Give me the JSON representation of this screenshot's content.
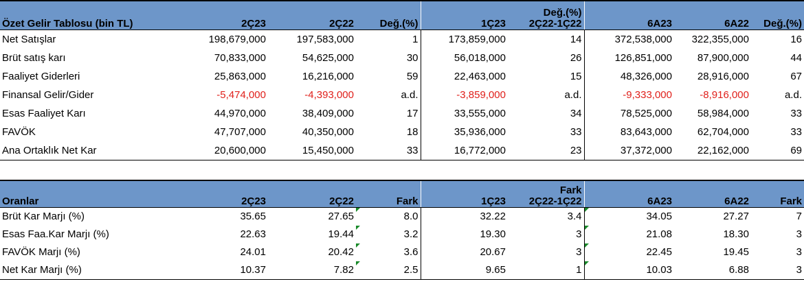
{
  "income": {
    "header": {
      "title": "Özet Gelir Tablosu (bin TL)",
      "c1": "2Ç23",
      "c2": "2Ç22",
      "c3": "Değ.(%)",
      "c4": "1Ç23",
      "c5_top": "Değ.(%)",
      "c5_bottom": "2Ç22-1Ç22",
      "c6": "6A23",
      "c7": "6A22",
      "c8": "Değ.(%)"
    },
    "rows": [
      {
        "label": "Net Satışlar",
        "v": [
          "198,679,000",
          "197,583,000",
          "1",
          "173,859,000",
          "14",
          "372,538,000",
          "322,355,000",
          "16"
        ]
      },
      {
        "label": "Brüt satış karı",
        "v": [
          "70,833,000",
          "54,625,000",
          "30",
          "56,018,000",
          "26",
          "126,851,000",
          "87,900,000",
          "44"
        ]
      },
      {
        "label": "Faaliyet Giderleri",
        "v": [
          "25,863,000",
          "16,216,000",
          "59",
          "22,463,000",
          "15",
          "48,326,000",
          "28,916,000",
          "67"
        ]
      },
      {
        "label": "Finansal Gelir/Gider",
        "v": [
          "-5,474,000",
          "-4,393,000",
          "a.d.",
          "-3,859,000",
          "a.d.",
          "-9,333,000",
          "-8,916,000",
          "a.d."
        ]
      },
      {
        "label": "Esas Faaliyet Karı",
        "v": [
          "44,970,000",
          "38,409,000",
          "17",
          "33,555,000",
          "34",
          "78,525,000",
          "58,984,000",
          "33"
        ]
      },
      {
        "label": "FAVÖK",
        "v": [
          "47,707,000",
          "40,350,000",
          "18",
          "35,936,000",
          "33",
          "83,643,000",
          "62,704,000",
          "33"
        ]
      },
      {
        "label": "Ana Ortaklık Net Kar",
        "v": [
          "20,600,000",
          "15,450,000",
          "33",
          "16,772,000",
          "23",
          "37,372,000",
          "22,162,000",
          "69"
        ]
      }
    ]
  },
  "ratios": {
    "header": {
      "title": "Oranlar",
      "c1": "2Ç23",
      "c2": "2Ç22",
      "c3": "Fark",
      "c4": "1Ç23",
      "c5_top": "Fark",
      "c5_bottom": "2Ç22-1Ç22",
      "c6": "6A23",
      "c7": "6A22",
      "c8": "Fark"
    },
    "rows": [
      {
        "label": "Brüt Kar Marjı (%)",
        "v": [
          "35.65",
          "27.65",
          "8.0",
          "32.22",
          "3.4",
          "34.05",
          "27.27",
          "7"
        ]
      },
      {
        "label": "Esas Faa.Kar Marjı (%)",
        "v": [
          "22.63",
          "19.44",
          "3.2",
          "19.30",
          "3",
          "21.08",
          "18.30",
          "3"
        ]
      },
      {
        "label": "FAVÖK Marjı (%)",
        "v": [
          "24.01",
          "20.42",
          "3.6",
          "20.67",
          "3",
          "22.45",
          "19.45",
          "3"
        ]
      },
      {
        "label": "Net Kar Marjı (%)",
        "v": [
          "10.37",
          "7.82",
          "2.5",
          "9.65",
          "1",
          "10.03",
          "6.88",
          "3"
        ]
      }
    ]
  },
  "colors": {
    "header_bg": "#6d96c9",
    "negative": "#e0201b",
    "cell_marker": "#1a8a2a"
  }
}
